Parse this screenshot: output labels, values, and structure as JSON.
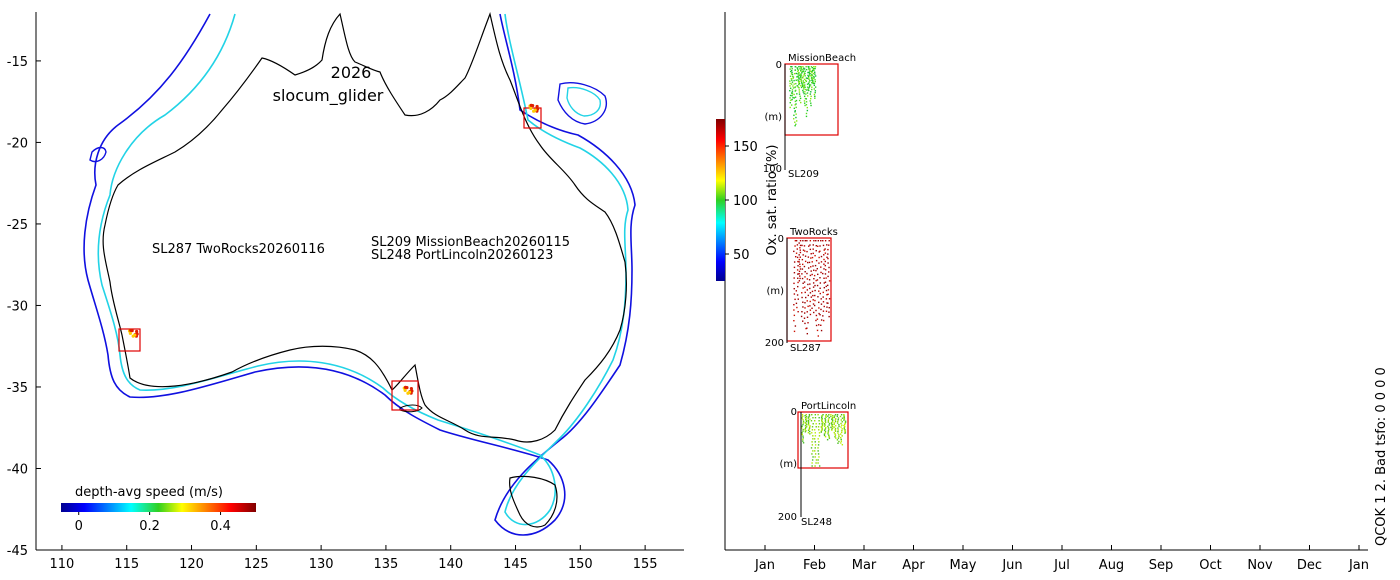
{
  "chart_data": [
    {
      "type": "map",
      "title_year": "2026",
      "title_platform": "slocum_glider",
      "xlim": [
        108,
        158
      ],
      "ylim": [
        -45,
        -12
      ],
      "xticks": [
        110,
        115,
        120,
        125,
        130,
        135,
        140,
        145,
        150,
        155
      ],
      "yticks": [
        -15,
        -20,
        -25,
        -30,
        -35,
        -40,
        -45
      ],
      "deployments": [
        {
          "label": "SL287 TwoRocks20260116",
          "lon": 115.5,
          "lat": -31.7
        },
        {
          "label": "SL209 MissionBeach20260115",
          "lon": 146.4,
          "lat": -17.9
        },
        {
          "label": "SL248 PortLincoln20260123",
          "lon": 136.7,
          "lat": -35.2
        }
      ],
      "colorbar": {
        "label": "depth-avg speed (m/s)",
        "range": [
          -0.05,
          0.5
        ],
        "ticks": [
          0,
          0.2,
          0.4
        ],
        "tick_labels": [
          "0",
          "0.2",
          "0.4"
        ]
      },
      "outline_colors": {
        "coast": "#000000",
        "shelf_200m": "#22d3e6",
        "isobath_deep": "#1010e0",
        "boxes": "#e00000"
      }
    },
    {
      "type": "profile-timeline",
      "months": [
        "Jan",
        "Feb",
        "Mar",
        "Apr",
        "May",
        "Jun",
        "Jul",
        "Aug",
        "Sep",
        "Oct",
        "Nov",
        "Dec",
        "Jan"
      ],
      "colorbar": {
        "label": "Ox. sat. ratio (%)",
        "range": [
          25,
          175
        ],
        "ticks": [
          50,
          100,
          150
        ],
        "tick_labels": [
          "50",
          "100",
          "150"
        ]
      },
      "panels": [
        {
          "site": "MissionBeach",
          "glider": "SL209",
          "depth_top": "0",
          "depth_bottom": "100",
          "unit": "(m)",
          "oxygen_level": 98,
          "dominant_color": "#33cc33"
        },
        {
          "site": "TwoRocks",
          "glider": "SL287",
          "depth_top": "0",
          "depth_bottom": "200",
          "unit": "(m)",
          "oxygen_level": 172,
          "dominant_color": "#b30000"
        },
        {
          "site": "PortLincoln",
          "glider": "SL248",
          "depth_top": "0",
          "depth_bottom": "200",
          "unit": "(m)",
          "oxygen_level": 105,
          "dominant_color": "#7fd400"
        }
      ],
      "qc_text": "QCOK 1  2. Bad tsfo: 0  0  0  0"
    }
  ]
}
